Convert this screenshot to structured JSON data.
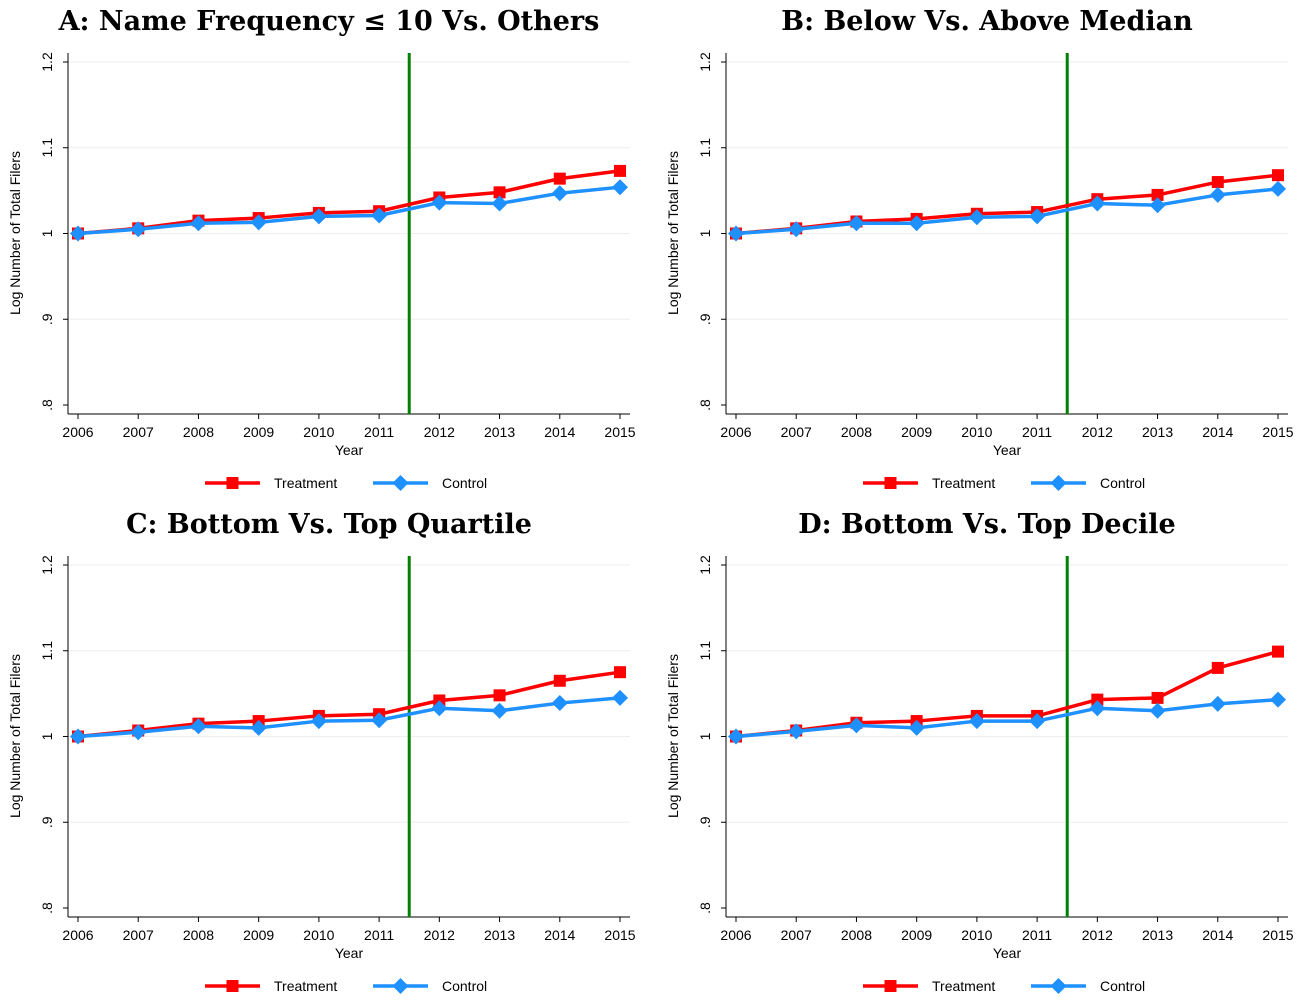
{
  "series_colors": {
    "Treatment": "#ff0000",
    "Control": "#1e90ff",
    "cutoff": "#008000"
  },
  "chart_data": [
    {
      "type": "line",
      "title": "A: Name Frequency ≤ 10 Vs. Others",
      "xlabel": "Year",
      "ylabel": "Log Number of Total Filers",
      "x": [
        "2006",
        "2007",
        "2008",
        "2009",
        "2010",
        "2011",
        "2012",
        "2013",
        "2014",
        "2015"
      ],
      "yticks": [
        ".8",
        ".9",
        "1",
        "1.1",
        "1.2"
      ],
      "ylim": [
        0.8,
        1.2
      ],
      "vline": 2011.5,
      "grid": true,
      "legend_position": "bottom",
      "series": [
        {
          "name": "Treatment",
          "values": [
            1.0,
            1.006,
            1.015,
            1.018,
            1.024,
            1.026,
            1.042,
            1.048,
            1.064,
            1.073
          ]
        },
        {
          "name": "Control",
          "values": [
            1.0,
            1.005,
            1.012,
            1.013,
            1.02,
            1.021,
            1.036,
            1.035,
            1.047,
            1.054
          ]
        }
      ]
    },
    {
      "type": "line",
      "title": "B: Below Vs. Above Median",
      "xlabel": "Year",
      "ylabel": "Log Number of Total Filers",
      "x": [
        "2006",
        "2007",
        "2008",
        "2009",
        "2010",
        "2011",
        "2012",
        "2013",
        "2014",
        "2015"
      ],
      "yticks": [
        ".8",
        ".9",
        "1",
        "1.1",
        "1.2"
      ],
      "ylim": [
        0.8,
        1.2
      ],
      "vline": 2011.5,
      "grid": true,
      "legend_position": "bottom",
      "series": [
        {
          "name": "Treatment",
          "values": [
            1.0,
            1.006,
            1.014,
            1.017,
            1.023,
            1.025,
            1.04,
            1.045,
            1.06,
            1.068
          ]
        },
        {
          "name": "Control",
          "values": [
            1.0,
            1.005,
            1.012,
            1.012,
            1.019,
            1.02,
            1.035,
            1.033,
            1.045,
            1.052
          ]
        }
      ]
    },
    {
      "type": "line",
      "title": "C: Bottom Vs. Top Quartile",
      "xlabel": "Year",
      "ylabel": "Log Number of Total Filers",
      "x": [
        "2006",
        "2007",
        "2008",
        "2009",
        "2010",
        "2011",
        "2012",
        "2013",
        "2014",
        "2015"
      ],
      "yticks": [
        ".8",
        ".9",
        "1",
        "1.1",
        "1.2"
      ],
      "ylim": [
        0.8,
        1.2
      ],
      "vline": 2011.5,
      "grid": true,
      "legend_position": "bottom",
      "series": [
        {
          "name": "Treatment",
          "values": [
            1.0,
            1.007,
            1.015,
            1.018,
            1.024,
            1.026,
            1.042,
            1.048,
            1.065,
            1.075
          ]
        },
        {
          "name": "Control",
          "values": [
            1.0,
            1.005,
            1.012,
            1.01,
            1.018,
            1.019,
            1.033,
            1.03,
            1.039,
            1.045
          ]
        }
      ]
    },
    {
      "type": "line",
      "title": "D: Bottom Vs. Top Decile",
      "xlabel": "Year",
      "ylabel": "Log Number of Total Filers",
      "x": [
        "2006",
        "2007",
        "2008",
        "2009",
        "2010",
        "2011",
        "2012",
        "2013",
        "2014",
        "2015"
      ],
      "yticks": [
        ".8",
        ".9",
        "1",
        "1.1",
        "1.2"
      ],
      "ylim": [
        0.8,
        1.2
      ],
      "vline": 2011.5,
      "grid": true,
      "legend_position": "bottom",
      "series": [
        {
          "name": "Treatment",
          "values": [
            1.0,
            1.007,
            1.016,
            1.018,
            1.024,
            1.024,
            1.043,
            1.045,
            1.08,
            1.099
          ]
        },
        {
          "name": "Control",
          "values": [
            1.0,
            1.006,
            1.013,
            1.01,
            1.018,
            1.018,
            1.033,
            1.03,
            1.038,
            1.043
          ]
        }
      ]
    }
  ]
}
